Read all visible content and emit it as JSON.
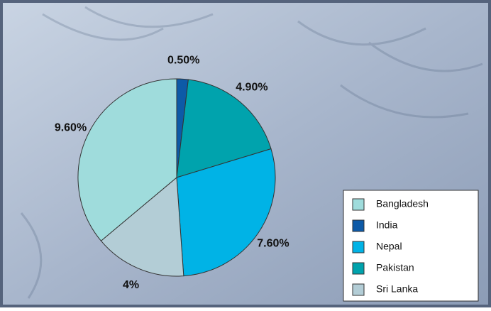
{
  "chart_data": {
    "type": "pie",
    "categories": [
      "India",
      "Pakistan",
      "Nepal",
      "Sri Lanka",
      "Bangladesh"
    ],
    "values": [
      0.5,
      4.9,
      7.6,
      4,
      9.6
    ],
    "value_labels": [
      "0.50%",
      "4.90%",
      "7.60%",
      "4%",
      "9.60%"
    ],
    "colors": [
      "#0d5aa7",
      "#00a3ad",
      "#00b3e6",
      "#b3cdd6",
      "#9fdcdc"
    ],
    "legend": "bottom-right"
  }
}
